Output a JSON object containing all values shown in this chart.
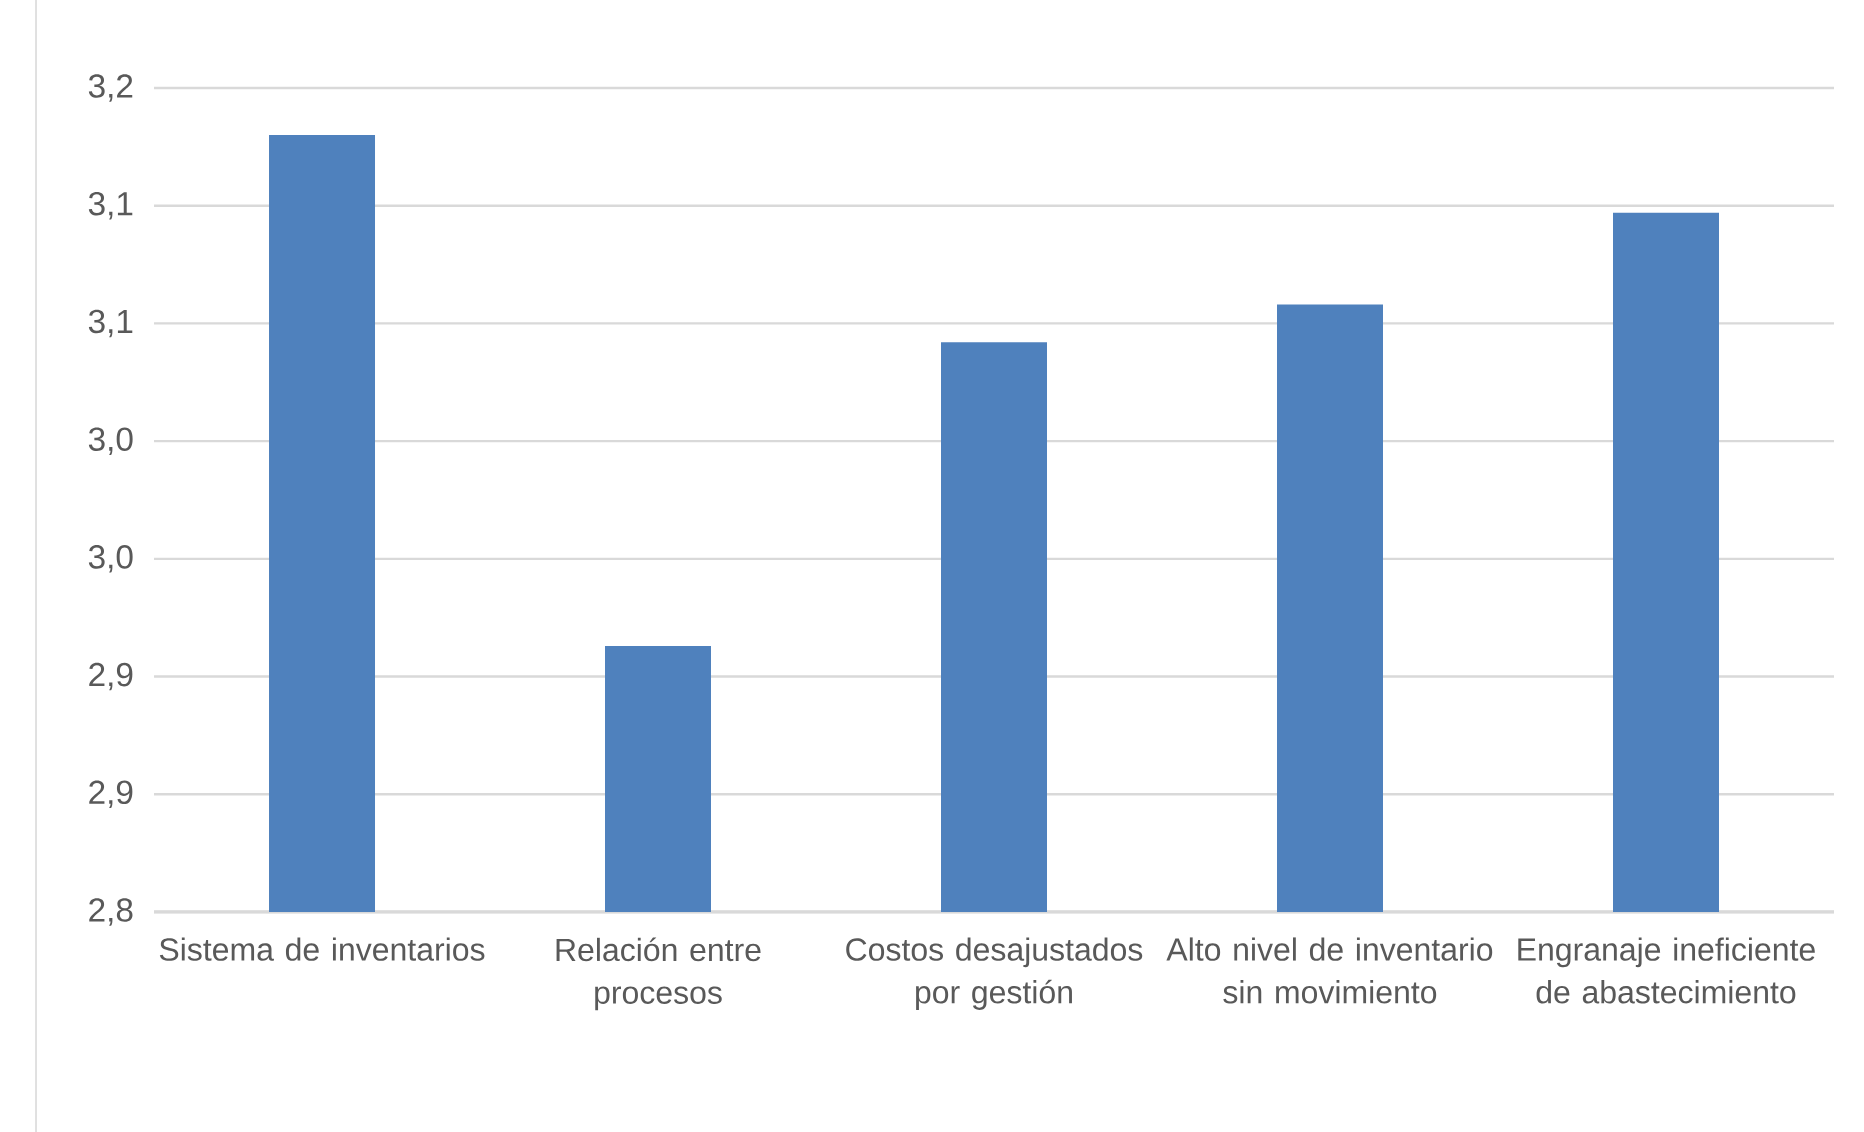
{
  "chart_data": {
    "type": "bar",
    "categories": [
      "Sistema de inventarios",
      "Relación entre procesos",
      "Costos desajustados por gestión",
      "Alto nivel de inventario sin movimiento",
      "Engranaje ineficiente de abastecimiento"
    ],
    "values": [
      3.13,
      2.913,
      3.042,
      3.058,
      3.097
    ],
    "color": "#4f81bd",
    "ylim": [
      2.8,
      3.15
    ],
    "yticks": [
      {
        "value": 2.8,
        "label": "2,8"
      },
      {
        "value": 2.85,
        "label": "2,9"
      },
      {
        "value": 2.9,
        "label": "2,9"
      },
      {
        "value": 2.95,
        "label": "3,0"
      },
      {
        "value": 3.0,
        "label": "3,0"
      },
      {
        "value": 3.05,
        "label": "3,1"
      },
      {
        "value": 3.1,
        "label": "3,1"
      },
      {
        "value": 3.15,
        "label": "3,2"
      }
    ],
    "grid": "y"
  }
}
